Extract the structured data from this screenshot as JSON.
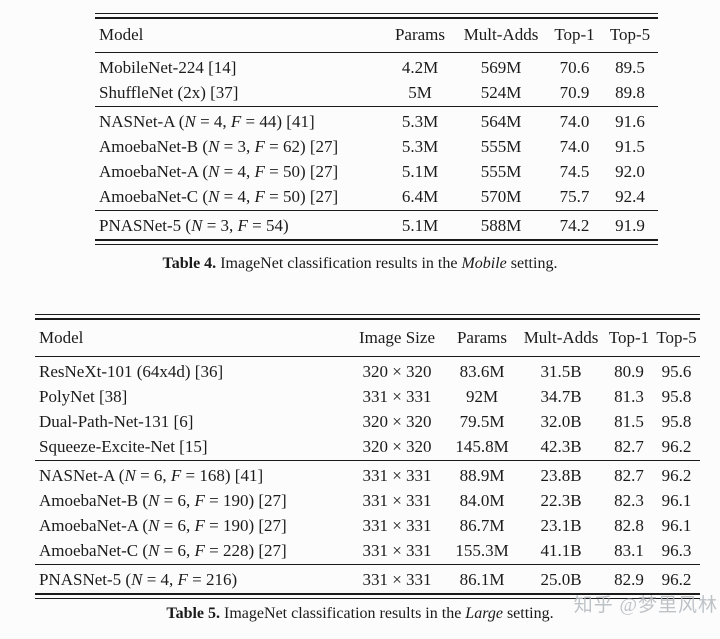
{
  "table4": {
    "columns": [
      "Model",
      "Params",
      "Mult-Adds",
      "Top-1",
      "Top-5"
    ],
    "groups": [
      [
        [
          "MobileNet-224 [14]",
          "4.2M",
          "569M",
          "70.6",
          "89.5"
        ],
        [
          "ShuffleNet (2x) [37]",
          "5M",
          "524M",
          "70.9",
          "89.8"
        ]
      ],
      [
        [
          "NASNet-A (N = 4, F = 44) [41]",
          "5.3M",
          "564M",
          "74.0",
          "91.6"
        ],
        [
          "AmoebaNet-B (N = 3, F = 62) [27]",
          "5.3M",
          "555M",
          "74.0",
          "91.5"
        ],
        [
          "AmoebaNet-A (N = 4, F = 50) [27]",
          "5.1M",
          "555M",
          "74.5",
          "92.0"
        ],
        [
          "AmoebaNet-C (N = 4, F = 50) [27]",
          "6.4M",
          "570M",
          "75.7",
          "92.4"
        ]
      ],
      [
        [
          "PNASNet-5 (N = 3, F = 54)",
          "5.1M",
          "588M",
          "74.2",
          "91.9"
        ]
      ]
    ],
    "caption": {
      "label": "Table 4.",
      "pre": "ImageNet classification results in the",
      "emph": "Mobile",
      "post": "setting."
    }
  },
  "table5": {
    "columns": [
      "Model",
      "Image Size",
      "Params",
      "Mult-Adds",
      "Top-1",
      "Top-5"
    ],
    "groups": [
      [
        [
          "ResNeXt-101 (64x4d) [36]",
          "320 × 320",
          "83.6M",
          "31.5B",
          "80.9",
          "95.6"
        ],
        [
          "PolyNet [38]",
          "331 × 331",
          "92M",
          "34.7B",
          "81.3",
          "95.8"
        ],
        [
          "Dual-Path-Net-131 [6]",
          "320 × 320",
          "79.5M",
          "32.0B",
          "81.5",
          "95.8"
        ],
        [
          "Squeeze-Excite-Net [15]",
          "320 × 320",
          "145.8M",
          "42.3B",
          "82.7",
          "96.2"
        ]
      ],
      [
        [
          "NASNet-A (N = 6, F = 168) [41]",
          "331 × 331",
          "88.9M",
          "23.8B",
          "82.7",
          "96.2"
        ],
        [
          "AmoebaNet-B (N = 6, F = 190) [27]",
          "331 × 331",
          "84.0M",
          "22.3B",
          "82.3",
          "96.1"
        ],
        [
          "AmoebaNet-A (N = 6, F = 190) [27]",
          "331 × 331",
          "86.7M",
          "23.1B",
          "82.8",
          "96.1"
        ],
        [
          "AmoebaNet-C (N = 6, F = 228) [27]",
          "331 × 331",
          "155.3M",
          "41.1B",
          "83.1",
          "96.3"
        ]
      ],
      [
        [
          "PNASNet-5 (N = 4, F = 216)",
          "331 × 331",
          "86.1M",
          "25.0B",
          "82.9",
          "96.2"
        ]
      ]
    ],
    "caption": {
      "label": "Table 5.",
      "pre": "ImageNet classification results in the",
      "emph": "Large",
      "post": "setting."
    }
  },
  "watermark": "知乎 @梦里风林",
  "colors": {
    "text": "#1b1b1b",
    "rule": "#1b1b1b",
    "background": "#fcfcfc",
    "watermark": "#b3b8be"
  }
}
